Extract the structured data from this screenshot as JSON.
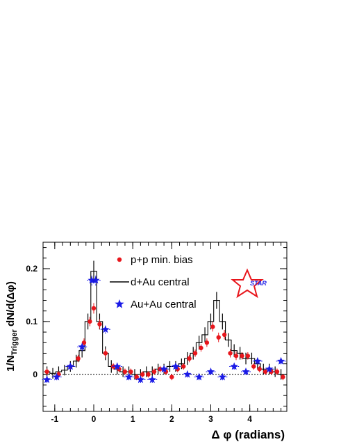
{
  "chart_data": {
    "type": "scatter",
    "xlabel": "Δ φ (radians)",
    "ylabel_main": "1/N",
    "ylabel_sub": "Trigger",
    "ylabel_tail": " dN/d(Δφ)",
    "xlim": [
      -1.3,
      4.95
    ],
    "ylim": [
      -0.07,
      0.25
    ],
    "x_ticks": [
      -1,
      0,
      1,
      2,
      3,
      4
    ],
    "x_tick_labels": [
      "-1",
      "0",
      "1",
      "2",
      "3",
      "4"
    ],
    "y_ticks": [
      0,
      0.1,
      0.2
    ],
    "y_tick_labels": [
      "0",
      "0.1",
      "0.2"
    ],
    "legend_position": "top-center",
    "logo_text": "STAR",
    "series": [
      {
        "name": "p+p min. bias",
        "marker": "circle",
        "color": "#e8161c",
        "x": [
          -1.2,
          -0.9,
          -0.6,
          -0.4,
          -0.25,
          -0.1,
          0.0,
          0.15,
          0.3,
          0.5,
          0.65,
          0.8,
          0.95,
          1.1,
          1.25,
          1.4,
          1.55,
          1.7,
          1.85,
          2.0,
          2.15,
          2.3,
          2.45,
          2.6,
          2.75,
          2.9,
          3.05,
          3.2,
          3.35,
          3.5,
          3.65,
          3.8,
          3.95,
          4.1,
          4.25,
          4.4,
          4.55,
          4.7,
          4.85
        ],
        "y": [
          0.005,
          0.0,
          0.015,
          0.03,
          0.06,
          0.1,
          0.125,
          0.095,
          0.04,
          0.015,
          0.01,
          0.005,
          0.005,
          -0.005,
          0.0,
          0.0,
          0.005,
          0.01,
          0.005,
          -0.005,
          0.01,
          0.015,
          0.03,
          0.04,
          0.05,
          0.06,
          0.09,
          0.07,
          0.075,
          0.04,
          0.035,
          0.035,
          0.035,
          0.015,
          0.01,
          0.005,
          0.005,
          0.005,
          -0.005
        ],
        "err": [
          0.006,
          0.006,
          0.006,
          0.007,
          0.008,
          0.009,
          0.01,
          0.009,
          0.008,
          0.006,
          0.006,
          0.006,
          0.006,
          0.006,
          0.006,
          0.006,
          0.006,
          0.006,
          0.006,
          0.006,
          0.006,
          0.006,
          0.007,
          0.007,
          0.007,
          0.008,
          0.009,
          0.009,
          0.009,
          0.008,
          0.008,
          0.007,
          0.007,
          0.006,
          0.006,
          0.006,
          0.006,
          0.006,
          0.006
        ]
      },
      {
        "name": "d+Au central",
        "marker": "histogram",
        "color": "#000000",
        "x": [
          -1.2,
          -1.05,
          -0.9,
          -0.75,
          -0.6,
          -0.45,
          -0.3,
          -0.15,
          0.0,
          0.15,
          0.3,
          0.45,
          0.6,
          0.75,
          0.9,
          1.05,
          1.2,
          1.35,
          1.5,
          1.65,
          1.8,
          1.95,
          2.1,
          2.25,
          2.4,
          2.55,
          2.7,
          2.85,
          3.0,
          3.15,
          3.3,
          3.45,
          3.6,
          3.75,
          3.9,
          4.05,
          4.2,
          4.35,
          4.5,
          4.65,
          4.8
        ],
        "y": [
          0.005,
          0.002,
          0.005,
          0.008,
          0.015,
          0.025,
          0.045,
          0.1,
          0.195,
          0.1,
          0.04,
          0.015,
          0.01,
          0.005,
          0.005,
          0.0,
          0.0,
          0.005,
          0.005,
          0.01,
          0.01,
          0.015,
          0.015,
          0.02,
          0.03,
          0.04,
          0.06,
          0.075,
          0.1,
          0.14,
          0.1,
          0.065,
          0.045,
          0.04,
          0.03,
          0.03,
          0.02,
          0.01,
          0.01,
          0.005,
          0.0
        ],
        "err": [
          0.01,
          0.01,
          0.01,
          0.01,
          0.01,
          0.012,
          0.013,
          0.015,
          0.02,
          0.015,
          0.013,
          0.012,
          0.01,
          0.01,
          0.01,
          0.01,
          0.01,
          0.01,
          0.01,
          0.01,
          0.01,
          0.01,
          0.01,
          0.01,
          0.012,
          0.012,
          0.013,
          0.014,
          0.015,
          0.016,
          0.015,
          0.013,
          0.012,
          0.012,
          0.011,
          0.011,
          0.011,
          0.01,
          0.01,
          0.01,
          0.01
        ]
      },
      {
        "name": "Au+Au central",
        "marker": "star",
        "color": "#1a1ae6",
        "x": [
          -1.2,
          -0.95,
          -0.6,
          -0.3,
          -0.05,
          0.05,
          0.3,
          0.6,
          0.9,
          1.2,
          1.5,
          1.8,
          2.1,
          2.4,
          2.7,
          3.0,
          3.3,
          3.6,
          3.9,
          4.2,
          4.5,
          4.8
        ],
        "y": [
          -0.01,
          -0.005,
          0.015,
          0.052,
          0.178,
          0.178,
          0.085,
          0.015,
          -0.005,
          -0.01,
          -0.01,
          0.01,
          0.015,
          0.0,
          -0.005,
          0.005,
          -0.005,
          0.015,
          0.005,
          0.025,
          0.01,
          0.025
        ],
        "err": [
          0.006,
          0.006,
          0.007,
          0.008,
          0.01,
          0.01,
          0.008,
          0.007,
          0.006,
          0.006,
          0.006,
          0.006,
          0.006,
          0.006,
          0.006,
          0.006,
          0.006,
          0.006,
          0.006,
          0.006,
          0.006,
          0.006
        ]
      }
    ]
  }
}
